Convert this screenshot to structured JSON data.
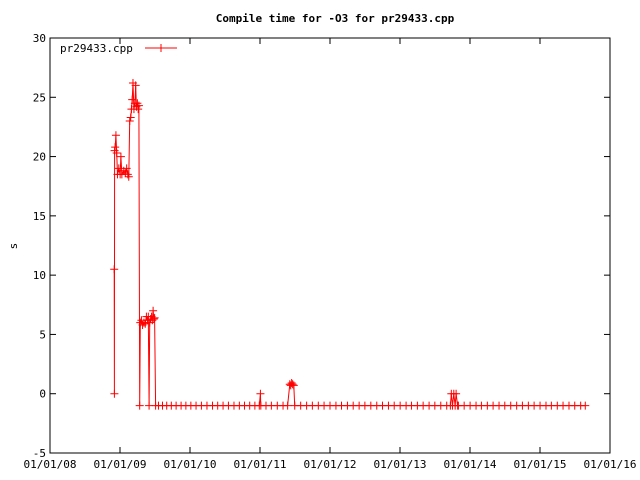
{
  "chart_data": {
    "type": "line",
    "title": "Compile time for -O3 for pr29433.cpp",
    "xlabel": "",
    "ylabel": "s",
    "xlim": [
      "2008-01-01",
      "2016-01-01"
    ],
    "ylim": [
      -5,
      30
    ],
    "yticks": [
      "-5",
      "0",
      "5",
      "10",
      "15",
      "20",
      "25",
      "30"
    ],
    "xticks": [
      "01/01/08",
      "01/01/09",
      "01/01/10",
      "01/01/11",
      "01/01/12",
      "01/01/13",
      "01/01/14",
      "01/01/15",
      "01/01/16"
    ],
    "grid": false,
    "legend_position": "top-left",
    "color": "#ff0000",
    "series": [
      {
        "name": "pr29433.cpp",
        "points": [
          [
            "2008-12-01",
            10.5
          ],
          [
            "2008-12-02",
            0.0
          ],
          [
            "2008-12-03",
            20.5
          ],
          [
            "2008-12-06",
            20.8
          ],
          [
            "2008-12-10",
            21.8
          ],
          [
            "2008-12-14",
            20.3
          ],
          [
            "2008-12-18",
            18.5
          ],
          [
            "2008-12-25",
            19.0
          ],
          [
            "2009-01-01",
            18.5
          ],
          [
            "2009-01-05",
            20.0
          ],
          [
            "2009-01-10",
            18.5
          ],
          [
            "2009-01-20",
            18.8
          ],
          [
            "2009-01-28",
            18.6
          ],
          [
            "2009-02-04",
            19.0
          ],
          [
            "2009-02-10",
            18.5
          ],
          [
            "2009-02-15",
            18.3
          ],
          [
            "2009-02-20",
            23.0
          ],
          [
            "2009-02-25",
            23.3
          ],
          [
            "2009-03-01",
            24.0
          ],
          [
            "2009-03-05",
            24.8
          ],
          [
            "2009-03-09",
            26.2
          ],
          [
            "2009-03-14",
            24.0
          ],
          [
            "2009-03-19",
            24.5
          ],
          [
            "2009-03-23",
            26.0
          ],
          [
            "2009-03-27",
            24.2
          ],
          [
            "2009-04-01",
            24.5
          ],
          [
            "2009-04-05",
            24.0
          ],
          [
            "2009-04-09",
            24.3
          ],
          [
            "2009-04-13",
            -1.0
          ],
          [
            "2009-04-16",
            6.0
          ],
          [
            "2009-04-22",
            6.2
          ],
          [
            "2009-04-28",
            5.8
          ],
          [
            "2009-05-05",
            6.0
          ],
          [
            "2009-05-12",
            5.9
          ],
          [
            "2009-05-18",
            6.5
          ],
          [
            "2009-05-24",
            6.2
          ],
          [
            "2009-05-28",
            6.5
          ],
          [
            "2009-06-01",
            -1.0
          ],
          [
            "2009-06-04",
            6.0
          ],
          [
            "2009-06-09",
            6.3
          ],
          [
            "2009-06-14",
            6.5
          ],
          [
            "2009-06-18",
            6.2
          ],
          [
            "2009-06-22",
            7.0
          ],
          [
            "2009-06-26",
            6.3
          ],
          [
            "2009-06-30",
            6.4
          ],
          [
            "2009-07-05",
            -1.0
          ],
          [
            "2009-07-20",
            -1.0
          ],
          [
            "2009-08-10",
            -1.0
          ],
          [
            "2009-09-01",
            -1.0
          ],
          [
            "2009-09-25",
            -1.0
          ],
          [
            "2009-10-20",
            -1.0
          ],
          [
            "2009-11-15",
            -1.0
          ],
          [
            "2009-12-10",
            -1.0
          ],
          [
            "2010-01-05",
            -1.0
          ],
          [
            "2010-02-01",
            -1.0
          ],
          [
            "2010-03-01",
            -1.0
          ],
          [
            "2010-03-30",
            -1.0
          ],
          [
            "2010-04-28",
            -1.0
          ],
          [
            "2010-05-25",
            -1.0
          ],
          [
            "2010-06-22",
            -1.0
          ],
          [
            "2010-07-20",
            -1.0
          ],
          [
            "2010-08-18",
            -1.0
          ],
          [
            "2010-09-15",
            -1.0
          ],
          [
            "2010-10-12",
            -1.0
          ],
          [
            "2010-11-08",
            -1.0
          ],
          [
            "2010-12-05",
            -1.0
          ],
          [
            "2010-12-28",
            -1.0
          ],
          [
            "2011-01-03",
            0.0
          ],
          [
            "2011-01-05",
            -1.0
          ],
          [
            "2011-02-01",
            -1.0
          ],
          [
            "2011-03-01",
            -1.0
          ],
          [
            "2011-04-01",
            -1.0
          ],
          [
            "2011-05-01",
            -1.0
          ],
          [
            "2011-05-25",
            -1.0
          ],
          [
            "2011-06-05",
            0.8
          ],
          [
            "2011-06-10",
            0.7
          ],
          [
            "2011-06-15",
            0.9
          ],
          [
            "2011-06-20",
            0.8
          ],
          [
            "2011-06-26",
            0.7
          ],
          [
            "2011-07-01",
            -1.0
          ],
          [
            "2011-08-01",
            -1.0
          ],
          [
            "2011-09-01",
            -1.0
          ],
          [
            "2011-10-01",
            -1.0
          ],
          [
            "2011-11-01",
            -1.0
          ],
          [
            "2011-12-01",
            -1.0
          ],
          [
            "2012-01-01",
            -1.0
          ],
          [
            "2012-02-01",
            -1.0
          ],
          [
            "2012-03-01",
            -1.0
          ],
          [
            "2012-04-01",
            -1.0
          ],
          [
            "2012-05-01",
            -1.0
          ],
          [
            "2012-06-01",
            -1.0
          ],
          [
            "2012-07-01",
            -1.0
          ],
          [
            "2012-08-01",
            -1.0
          ],
          [
            "2012-09-01",
            -1.0
          ],
          [
            "2012-10-01",
            -1.0
          ],
          [
            "2012-11-01",
            -1.0
          ],
          [
            "2012-12-01",
            -1.0
          ],
          [
            "2013-01-01",
            -1.0
          ],
          [
            "2013-02-01",
            -1.0
          ],
          [
            "2013-03-01",
            -1.0
          ],
          [
            "2013-04-01",
            -1.0
          ],
          [
            "2013-05-01",
            -1.0
          ],
          [
            "2013-06-01",
            -1.0
          ],
          [
            "2013-07-01",
            -1.0
          ],
          [
            "2013-08-01",
            -1.0
          ],
          [
            "2013-09-01",
            -1.0
          ],
          [
            "2013-09-20",
            -1.0
          ],
          [
            "2013-09-25",
            0.0
          ],
          [
            "2013-10-01",
            -1.0
          ],
          [
            "2013-10-08",
            0.0
          ],
          [
            "2013-10-15",
            -1.0
          ],
          [
            "2013-10-20",
            0.0
          ],
          [
            "2013-10-28",
            -1.0
          ],
          [
            "2013-11-01",
            -1.0
          ],
          [
            "2013-12-01",
            -1.0
          ],
          [
            "2014-01-01",
            -1.0
          ],
          [
            "2014-02-01",
            -1.0
          ],
          [
            "2014-03-01",
            -1.0
          ],
          [
            "2014-04-01",
            -1.0
          ],
          [
            "2014-05-01",
            -1.0
          ],
          [
            "2014-06-01",
            -1.0
          ],
          [
            "2014-07-01",
            -1.0
          ],
          [
            "2014-08-01",
            -1.0
          ],
          [
            "2014-09-01",
            -1.0
          ],
          [
            "2014-10-01",
            -1.0
          ],
          [
            "2014-11-01",
            -1.0
          ],
          [
            "2014-12-01",
            -1.0
          ],
          [
            "2015-01-01",
            -1.0
          ],
          [
            "2015-02-01",
            -1.0
          ],
          [
            "2015-03-01",
            -1.0
          ],
          [
            "2015-04-01",
            -1.0
          ],
          [
            "2015-05-01",
            -1.0
          ],
          [
            "2015-06-01",
            -1.0
          ],
          [
            "2015-07-01",
            -1.0
          ],
          [
            "2015-08-01",
            -1.0
          ],
          [
            "2015-08-25",
            -1.0
          ]
        ]
      }
    ]
  }
}
